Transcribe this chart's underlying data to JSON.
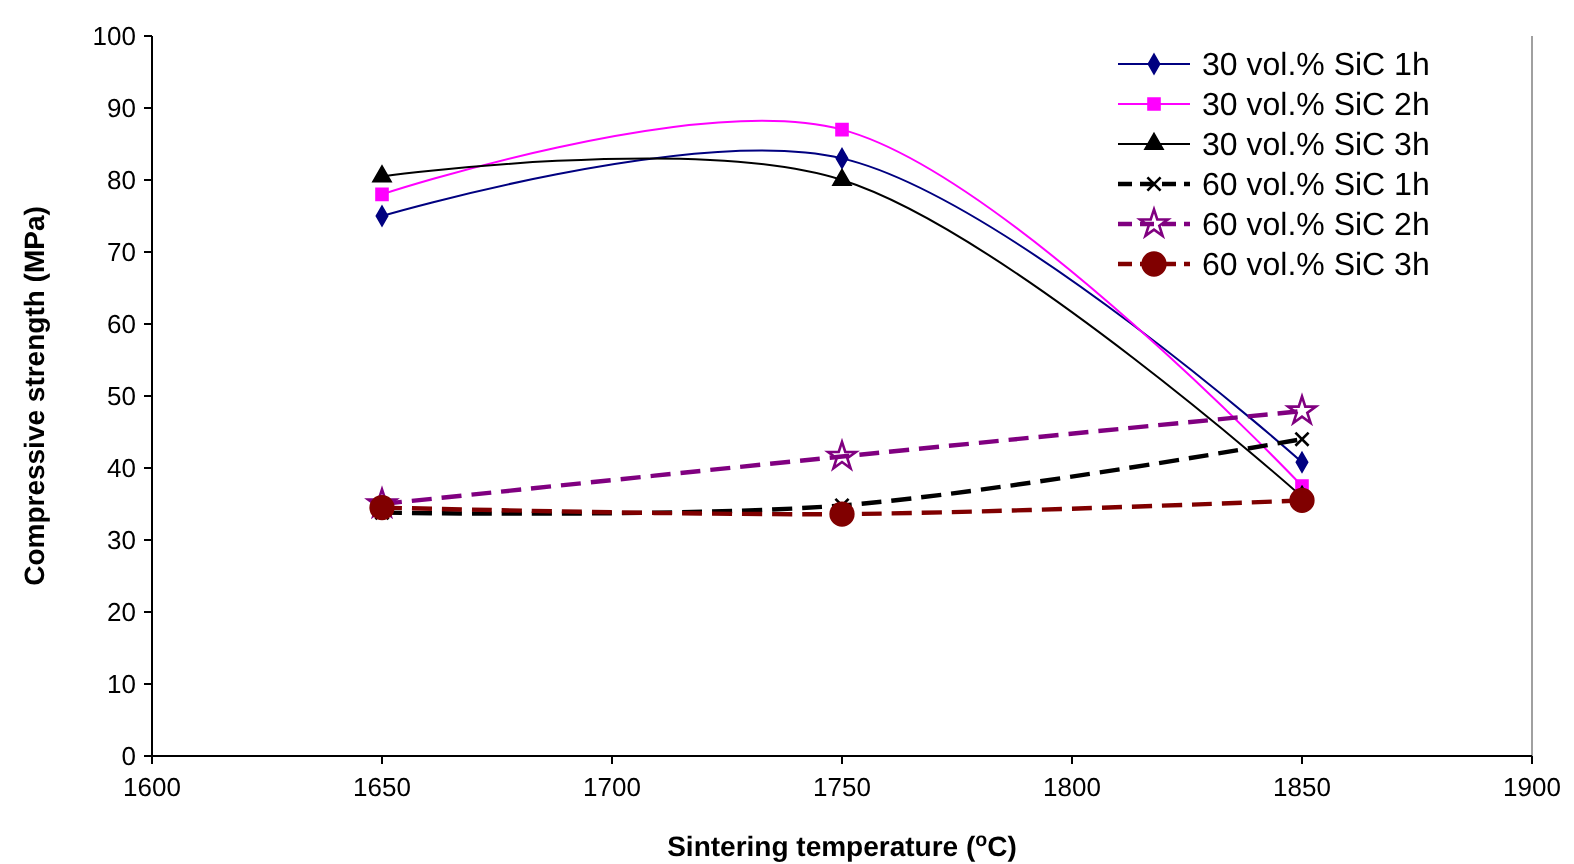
{
  "chart_data": {
    "type": "line",
    "xlabel": "Sintering temperature ($^{o}$C)",
    "ylabel": "Compressive strength (MPa)",
    "x": [
      1650,
      1750,
      1850
    ],
    "xlim": [
      1600,
      1900
    ],
    "xticks": [
      1600,
      1650,
      1700,
      1750,
      1800,
      1850,
      1900
    ],
    "ylim": [
      0,
      100
    ],
    "yticks": [
      0,
      10,
      20,
      30,
      40,
      50,
      60,
      70,
      80,
      90,
      100
    ],
    "grid": false,
    "legend": "top right",
    "series": [
      {
        "name": "30 vol.% SiC 1h",
        "color": "#000080",
        "values": [
          75,
          83,
          40.8
        ],
        "marker": "diamond",
        "line_style": "solid"
      },
      {
        "name": "30 vol.% SiC 2h",
        "color": "#ff00ff",
        "values": [
          78,
          87,
          37.5
        ],
        "marker": "square",
        "line_style": "solid"
      },
      {
        "name": "30 vol.% SiC 3h",
        "color": "#000000",
        "values": [
          80.5,
          80,
          36
        ],
        "marker": "triangle",
        "line_style": "solid"
      },
      {
        "name": "60 vol.% SiC 1h",
        "color": "#000000",
        "values": [
          33.8,
          34.8,
          44
        ],
        "marker": "cross",
        "line_style": "dashed"
      },
      {
        "name": "60 vol.% SiC 2h",
        "color": "#800080",
        "values": [
          35,
          41.6,
          47.9
        ],
        "marker": "star",
        "line_style": "dashed"
      },
      {
        "name": "60 vol.% SiC 3h",
        "color": "#800000",
        "values": [
          34.5,
          33.6,
          35.5
        ],
        "marker": "circle",
        "line_style": "dashed"
      }
    ]
  }
}
